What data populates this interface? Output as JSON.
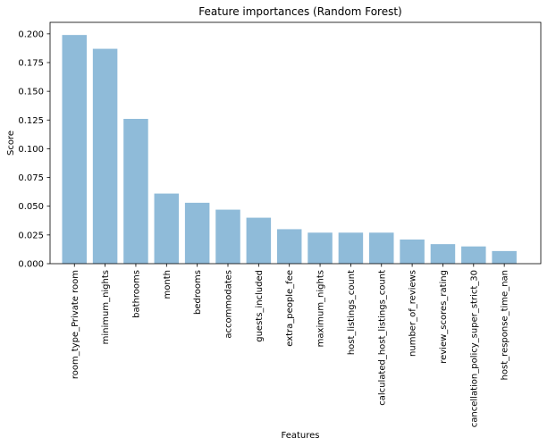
{
  "chart_data": {
    "type": "bar",
    "title": "Feature importances (Random Forest)",
    "xlabel": "Features",
    "ylabel": "Score",
    "ylim": [
      0,
      0.21
    ],
    "yticks": [
      "0.000",
      "0.025",
      "0.050",
      "0.075",
      "0.100",
      "0.125",
      "0.150",
      "0.175",
      "0.200"
    ],
    "categories": [
      "room_type_Private room",
      "minimum_nights",
      "bathrooms",
      "month",
      "bedrooms",
      "accommodates",
      "guests_included",
      "extra_people_fee",
      "maximum_nights",
      "host_listings_count",
      "calculated_host_listings_count",
      "number_of_reviews",
      "review_scores_rating",
      "cancellation_policy_super_strict_30",
      "host_response_time_nan"
    ],
    "values": [
      0.199,
      0.187,
      0.126,
      0.061,
      0.053,
      0.047,
      0.04,
      0.03,
      0.027,
      0.027,
      0.027,
      0.021,
      0.017,
      0.015,
      0.011
    ],
    "bar_color": "#8fbbd9",
    "grid": false,
    "legend": "none"
  }
}
